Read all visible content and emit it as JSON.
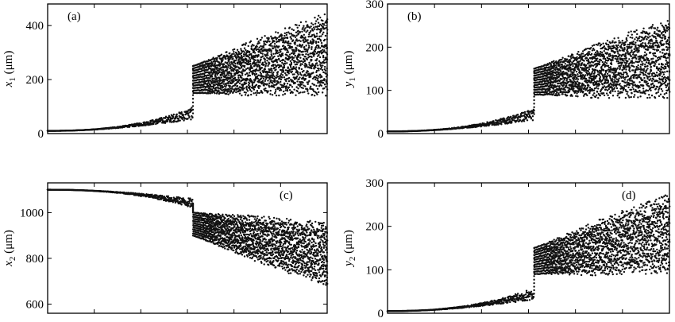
{
  "chart_data": [
    {
      "type": "scatter",
      "panel_label": "(a)",
      "ylabel": {
        "var": "x",
        "sub": "1",
        "unit": "(μm)"
      },
      "ylim": [
        0,
        480
      ],
      "yticks": [
        0,
        200,
        400
      ],
      "xlim": [
        0,
        1
      ],
      "xticks_count": 5,
      "label_position": "top-left",
      "regime": {
        "start": 10,
        "end_pre": 75,
        "jump_at": 0.52,
        "post_low": [
          150,
          170
        ],
        "post_high": [
          250,
          420
        ],
        "bands": 12,
        "trend": "up"
      }
    },
    {
      "type": "scatter",
      "panel_label": "(b)",
      "ylabel": {
        "var": "y",
        "sub": "1",
        "unit": "(μm)"
      },
      "ylim": [
        0,
        300
      ],
      "yticks": [
        0,
        100,
        200,
        300
      ],
      "xlim": [
        0,
        1
      ],
      "xticks_count": 5,
      "label_position": "top-left",
      "regime": {
        "start": 5,
        "end_pre": 45,
        "jump_at": 0.52,
        "post_low": [
          90,
          100
        ],
        "post_high": [
          150,
          250
        ],
        "bands": 12,
        "trend": "up"
      }
    },
    {
      "type": "scatter",
      "panel_label": "(c)",
      "ylabel": {
        "var": "x",
        "sub": "2",
        "unit": "(μm)"
      },
      "ylim": [
        560,
        1130
      ],
      "yticks": [
        600,
        800,
        1000
      ],
      "xlim": [
        0,
        1
      ],
      "xticks_count": 5,
      "label_position": "top-right",
      "regime": {
        "start": 1100,
        "end_pre": 1040,
        "jump_at": 0.52,
        "post_low": [
          900,
          700
        ],
        "post_high": [
          1000,
          930
        ],
        "bands": 12,
        "trend": "down"
      }
    },
    {
      "type": "scatter",
      "panel_label": "(d)",
      "ylabel": {
        "var": "y",
        "sub": "2",
        "unit": "(μm)"
      },
      "ylim": [
        0,
        300
      ],
      "yticks": [
        0,
        100,
        200,
        300
      ],
      "xlim": [
        0,
        1
      ],
      "xticks_count": 5,
      "label_position": "top-right",
      "regime": {
        "start": 5,
        "end_pre": 45,
        "jump_at": 0.52,
        "post_low": [
          90,
          110
        ],
        "post_high": [
          150,
          260
        ],
        "bands": 12,
        "trend": "up"
      }
    }
  ]
}
